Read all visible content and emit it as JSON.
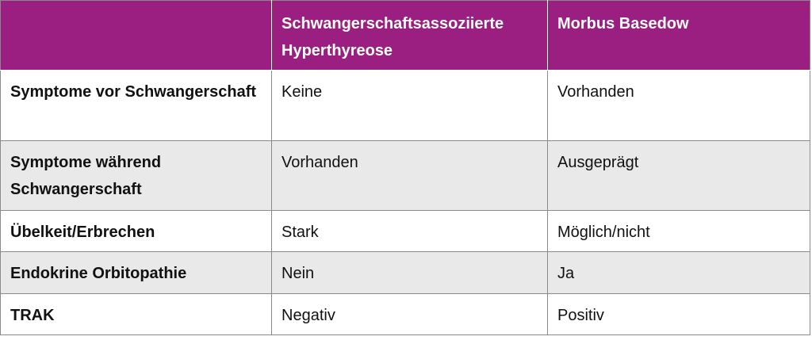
{
  "table": {
    "header": {
      "corner": "",
      "col1": "Schwangerschaftsassoziierte Hyperthyreose",
      "col2": "Morbus Basedow"
    },
    "rows": [
      {
        "label": "Symptome vor Schwangerschaft",
        "col1": "Keine",
        "col2": "Vorhanden"
      },
      {
        "label": "Symptome während Schwangerschaft",
        "col1": "Vorhanden",
        "col2": "Ausgeprägt"
      },
      {
        "label": "Übelkeit/Erbrechen",
        "col1": "Stark",
        "col2": "Möglich/nicht"
      },
      {
        "label": "Endokrine Orbitopathie",
        "col1": "Nein",
        "col2": "Ja"
      },
      {
        "label": "TRAK",
        "col1": "Negativ",
        "col2": "Positiv"
      }
    ]
  },
  "colors": {
    "header_bg": "#9a1f80",
    "header_text": "#ffffff",
    "alt_row_bg": "#e9e9e9",
    "border": "#8a8a8a"
  }
}
